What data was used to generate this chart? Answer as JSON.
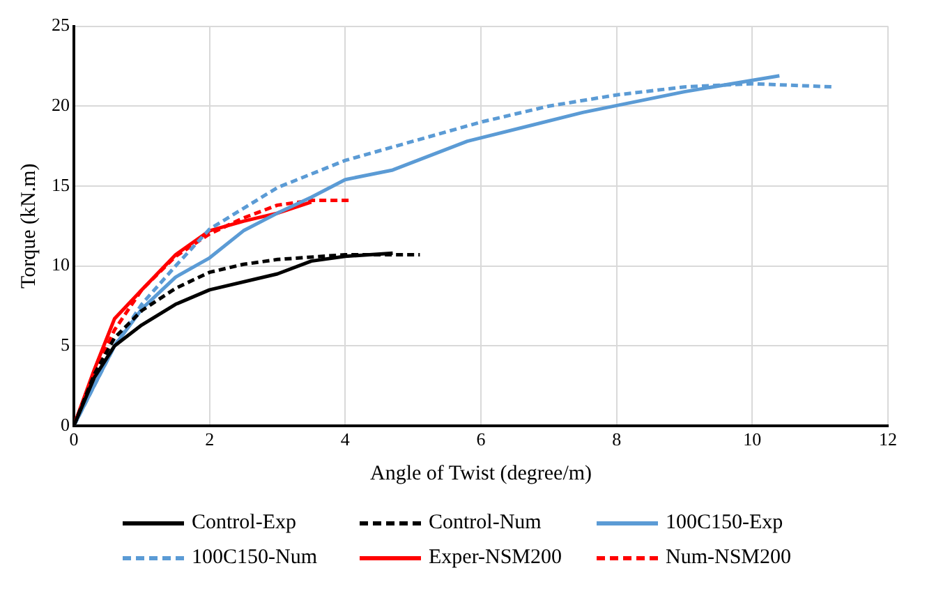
{
  "chart_data": {
    "type": "line",
    "xlabel": "Angle of Twist (degree/m)",
    "ylabel": "Torque (kN.m)",
    "xlim": [
      0,
      12
    ],
    "xticks": [
      0,
      2,
      4,
      6,
      8,
      10,
      12
    ],
    "ylim": [
      0,
      25
    ],
    "yticks": [
      0,
      5,
      10,
      15,
      20,
      25
    ],
    "grid": true,
    "legend": "bottom",
    "marker": "none",
    "series": [
      {
        "name": "Control-Exp",
        "color": "#000000",
        "line_style": "solid",
        "x": [
          0,
          0.3,
          0.6,
          1,
          1.5,
          2,
          3,
          3.5,
          4,
          4.7
        ],
        "values": [
          0,
          3,
          5,
          6.3,
          7.6,
          8.5,
          9.5,
          10.3,
          10.6,
          10.8
        ]
      },
      {
        "name": "Control-Num",
        "color": "#000000",
        "line_style": "dashed",
        "x": [
          0,
          0.3,
          0.6,
          1,
          1.5,
          2,
          2.5,
          3,
          4,
          5.1
        ],
        "values": [
          0,
          3.2,
          5.5,
          7.2,
          8.6,
          9.6,
          10.1,
          10.4,
          10.7,
          10.7
        ]
      },
      {
        "name": "100C150-Exp",
        "color": "#5b9bd5",
        "line_style": "solid",
        "x": [
          0,
          0.3,
          0.6,
          1,
          1.5,
          2,
          2.5,
          3,
          3.5,
          4,
          4.7,
          5.8,
          7.5,
          9,
          10.4
        ],
        "values": [
          0,
          2.5,
          5,
          7.3,
          9.3,
          10.5,
          12.2,
          13.3,
          14.3,
          15.4,
          16,
          17.8,
          19.6,
          20.9,
          21.9
        ]
      },
      {
        "name": "100C150-Num",
        "color": "#5b9bd5",
        "line_style": "dashed",
        "x": [
          0,
          0.3,
          0.6,
          1,
          1.5,
          2,
          3,
          4,
          5,
          6,
          7,
          8,
          9,
          10,
          11.2
        ],
        "values": [
          0,
          2.5,
          5,
          7.6,
          10,
          12.3,
          14.9,
          16.6,
          17.8,
          19,
          20,
          20.7,
          21.2,
          21.4,
          21.2
        ]
      },
      {
        "name": "Exper-NSM200",
        "color": "#ff0000",
        "line_style": "solid",
        "x": [
          0,
          0.3,
          0.6,
          1,
          1.5,
          2,
          2.5,
          3,
          3.5
        ],
        "values": [
          0,
          3.5,
          6.7,
          8.5,
          10.7,
          12.2,
          12.8,
          13.3,
          14
        ]
      },
      {
        "name": "Num-NSM200",
        "color": "#ff0000",
        "line_style": "dashed",
        "x": [
          0,
          0.3,
          0.6,
          1,
          1.5,
          2,
          2.5,
          3,
          3.5,
          4.1
        ],
        "values": [
          0,
          3.3,
          6,
          8.5,
          10.6,
          12,
          13,
          13.8,
          14.1,
          14.1
        ]
      }
    ]
  }
}
